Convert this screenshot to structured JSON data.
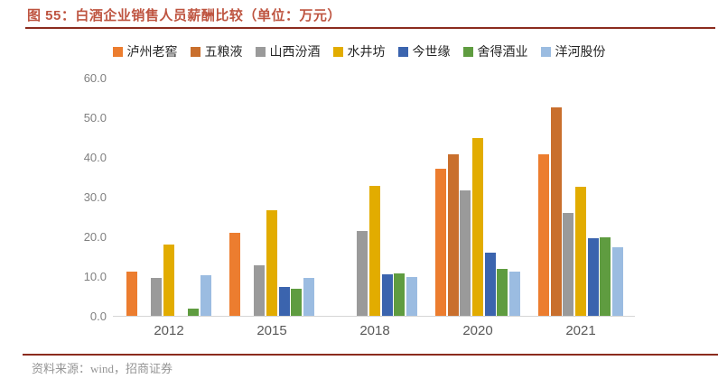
{
  "header": {
    "title": "图 55：白酒企业销售人员薪酬比较（单位：万元）",
    "title_color": "#BE5440",
    "rule_color": "#8B2B1E"
  },
  "footer": {
    "source_label": "资料来源：wind，招商证券",
    "rule_color": "#8B2B1E"
  },
  "chart_data": {
    "type": "bar",
    "title": "白酒企业销售人员薪酬比较",
    "unit": "万元",
    "categories": [
      "2012",
      "2015",
      "2018",
      "2020",
      "2021"
    ],
    "series": [
      {
        "name": "泸州老窖",
        "color": "#EC7D2F",
        "values": [
          11.2,
          21.0,
          null,
          37.0,
          40.8
        ]
      },
      {
        "name": "五粮液",
        "color": "#C96F2D",
        "values": [
          null,
          null,
          null,
          40.6,
          52.6
        ]
      },
      {
        "name": "山西汾酒",
        "color": "#9A9A9A",
        "values": [
          9.5,
          12.8,
          21.4,
          31.5,
          26.0
        ]
      },
      {
        "name": "水井坊",
        "color": "#E2AC00",
        "values": [
          18.0,
          26.7,
          32.8,
          44.7,
          32.4
        ]
      },
      {
        "name": "今世缘",
        "color": "#3B64AE",
        "values": [
          null,
          7.2,
          10.5,
          15.9,
          19.5
        ]
      },
      {
        "name": "舍得酒业",
        "color": "#5F9C40",
        "values": [
          1.9,
          6.9,
          10.8,
          11.8,
          19.8
        ]
      },
      {
        "name": "洋河股份",
        "color": "#9BBCE1",
        "values": [
          10.3,
          9.5,
          9.7,
          11.2,
          17.3
        ]
      }
    ],
    "ylim": [
      0,
      60
    ],
    "ytick_step": 10,
    "ytick_labels": [
      "0.0",
      "10.0",
      "20.0",
      "30.0",
      "40.0",
      "50.0",
      "60.0"
    ],
    "grid": false,
    "legend_position": "top",
    "axis_line_color": "#D6D6D6"
  }
}
